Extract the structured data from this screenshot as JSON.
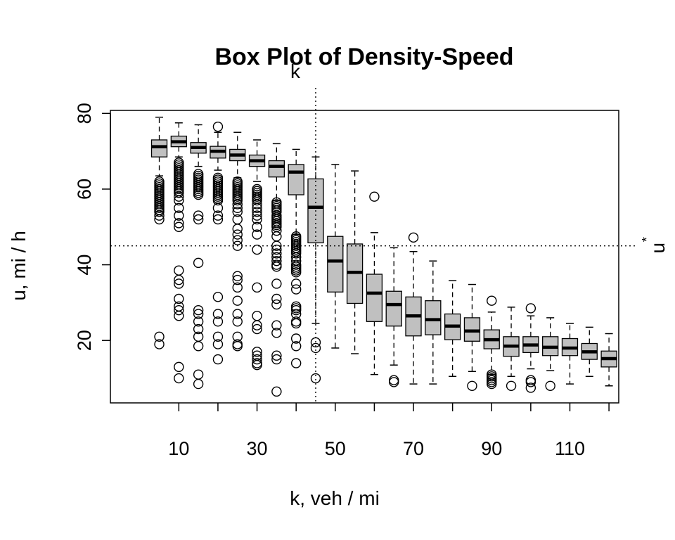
{
  "chart_data": {
    "type": "box",
    "title": "Box Plot of Density-Speed",
    "xlabel": "k, veh / mi",
    "ylabel": "u, mi / h",
    "x_tick_labels": [
      "10",
      "30",
      "50",
      "70",
      "90",
      "110"
    ],
    "x_ticks": [
      10,
      20,
      30,
      40,
      50,
      60,
      70,
      80,
      90,
      100,
      110,
      120
    ],
    "y_tick_labels": [
      "20",
      "40",
      "60",
      "80"
    ],
    "y_ticks": [
      20,
      40,
      60,
      80
    ],
    "xlim": [
      -7.5,
      122.5
    ],
    "ylim": [
      3.5,
      80.8
    ],
    "ref_lines": {
      "vertical": {
        "x": 45,
        "label": "k"
      },
      "horizontal": {
        "y": 45,
        "label": "u *"
      }
    },
    "box_fill": "#c0c0c0",
    "boxes": [
      {
        "k": 5,
        "lw": 63.5,
        "q1": 68.5,
        "med": 71.2,
        "q3": 73.0,
        "uw": 79.0,
        "out": [
          62,
          61.5,
          61,
          60.5,
          60,
          59.5,
          59,
          58.5,
          58,
          57.5,
          57,
          56.5,
          56,
          55.5,
          55,
          54.5,
          54,
          53,
          52,
          21,
          19
        ]
      },
      {
        "k": 10,
        "lw": 68.5,
        "q1": 71.2,
        "med": 72.5,
        "q3": 74.0,
        "uw": 77.5,
        "out": [
          67,
          66.5,
          66,
          65.5,
          65,
          64.5,
          64,
          63.5,
          63,
          62.5,
          62,
          61.5,
          61,
          60.5,
          60,
          59.5,
          59,
          58,
          57,
          55,
          53,
          51,
          50,
          38.5,
          36,
          35,
          31,
          29,
          28,
          26.5,
          13,
          10
        ]
      },
      {
        "k": 15,
        "lw": 66,
        "q1": 69.5,
        "med": 71,
        "q3": 72.3,
        "uw": 77,
        "out": [
          64,
          63.5,
          63,
          62.5,
          62,
          61.5,
          61,
          60.5,
          60,
          59.5,
          59,
          58.5,
          53,
          52,
          40.5,
          28,
          27,
          25,
          23,
          21,
          18.5,
          11,
          8.5
        ]
      },
      {
        "k": 20,
        "lw": 65,
        "q1": 68.2,
        "med": 70,
        "q3": 71.3,
        "uw": 75,
        "out": [
          76.5,
          63,
          62.5,
          62,
          61.5,
          61,
          60.5,
          60,
          59.5,
          59,
          58.5,
          58,
          57.5,
          57,
          55,
          53,
          52,
          31.5,
          27,
          25,
          21,
          19,
          15
        ]
      },
      {
        "k": 25,
        "lw": 63,
        "q1": 67.5,
        "med": 69,
        "q3": 70.5,
        "uw": 75,
        "out": [
          62,
          61.5,
          61,
          60.5,
          60,
          59.5,
          59,
          58.5,
          58,
          57.5,
          57,
          56,
          55,
          54,
          52,
          49.5,
          48,
          46.5,
          45,
          37,
          36,
          34,
          30.5,
          27,
          25,
          21,
          19,
          18.5
        ]
      },
      {
        "k": 30,
        "lw": 62,
        "q1": 66,
        "med": 67.5,
        "q3": 69,
        "uw": 73,
        "out": [
          60,
          59.5,
          59,
          58.5,
          58,
          57.5,
          57,
          56,
          55,
          54,
          53,
          52,
          50,
          48,
          44,
          34,
          26.5,
          24,
          23,
          17,
          16,
          15,
          14,
          13.5
        ]
      },
      {
        "k": 35,
        "lw": 57,
        "q1": 63.2,
        "med": 66,
        "q3": 67.5,
        "uw": 72,
        "out": [
          56.5,
          56,
          55.5,
          55,
          54.5,
          54,
          53,
          52.5,
          52,
          51.5,
          51,
          50.5,
          50,
          49,
          47.5,
          45,
          44,
          43,
          42,
          41,
          40,
          39.5,
          35,
          31,
          29.5,
          24,
          22,
          16,
          15,
          6.5
        ]
      },
      {
        "k": 40,
        "lw": 48,
        "q1": 58.5,
        "med": 64.5,
        "q3": 66.5,
        "uw": 70.5,
        "out": [
          47.5,
          47,
          46.5,
          46,
          45.5,
          45,
          44.5,
          44,
          43.5,
          43,
          42,
          41,
          40,
          39.5,
          39,
          38.5,
          38,
          35,
          33.5,
          29,
          28.5,
          28,
          27,
          25,
          24.5,
          20.5,
          18.5,
          14
        ]
      },
      {
        "k": 45,
        "lw": 24.5,
        "q1": 45.8,
        "med": 55.2,
        "q3": 62.7,
        "uw": 68.5,
        "out": [
          19.5,
          18,
          10
        ]
      },
      {
        "k": 50,
        "lw": 18,
        "q1": 32.8,
        "med": 41,
        "q3": 47.5,
        "uw": 66.5,
        "out": []
      },
      {
        "k": 55,
        "lw": 16.5,
        "q1": 29.8,
        "med": 38,
        "q3": 45.5,
        "uw": 64.8,
        "out": []
      },
      {
        "k": 60,
        "lw": 11,
        "q1": 25,
        "med": 32.5,
        "q3": 37.5,
        "uw": 48.5,
        "out": [
          58
        ]
      },
      {
        "k": 65,
        "lw": 13.5,
        "q1": 23.8,
        "med": 29.5,
        "q3": 33,
        "uw": 44.5,
        "out": [
          9.5,
          9
        ]
      },
      {
        "k": 70,
        "lw": 8.5,
        "q1": 21.2,
        "med": 26.5,
        "q3": 31.5,
        "uw": 43.5,
        "out": [
          47.2
        ]
      },
      {
        "k": 75,
        "lw": 8.5,
        "q1": 21.5,
        "med": 25.5,
        "q3": 30.5,
        "uw": 41,
        "out": []
      },
      {
        "k": 80,
        "lw": 10.5,
        "q1": 20.2,
        "med": 23.8,
        "q3": 27,
        "uw": 35.8,
        "out": []
      },
      {
        "k": 85,
        "lw": 11.8,
        "q1": 19.8,
        "med": 22.5,
        "q3": 26,
        "uw": 34.8,
        "out": [
          8
        ]
      },
      {
        "k": 90,
        "lw": 11,
        "q1": 17.8,
        "med": 20.2,
        "q3": 22.8,
        "uw": 27.5,
        "out": [
          30.5,
          11,
          10.5,
          10,
          9.5,
          9,
          8.5
        ]
      },
      {
        "k": 95,
        "lw": 10.5,
        "q1": 15.8,
        "med": 18.5,
        "q3": 21,
        "uw": 28.8,
        "out": [
          8
        ]
      },
      {
        "k": 100,
        "lw": 12.5,
        "q1": 16.8,
        "med": 18.8,
        "q3": 21,
        "uw": 26.5,
        "out": [
          28.5,
          9.5,
          9,
          7.5
        ]
      },
      {
        "k": 105,
        "lw": 12,
        "q1": 16,
        "med": 18.2,
        "q3": 21,
        "uw": 26,
        "out": [
          8
        ]
      },
      {
        "k": 110,
        "lw": 8.5,
        "q1": 16,
        "med": 18,
        "q3": 20.5,
        "uw": 24.5,
        "out": []
      },
      {
        "k": 115,
        "lw": 10.5,
        "q1": 15,
        "med": 17,
        "q3": 19.2,
        "uw": 23.5,
        "out": []
      },
      {
        "k": 120,
        "lw": 8,
        "q1": 13,
        "med": 15.2,
        "q3": 17.2,
        "uw": 21.8,
        "out": []
      }
    ]
  }
}
